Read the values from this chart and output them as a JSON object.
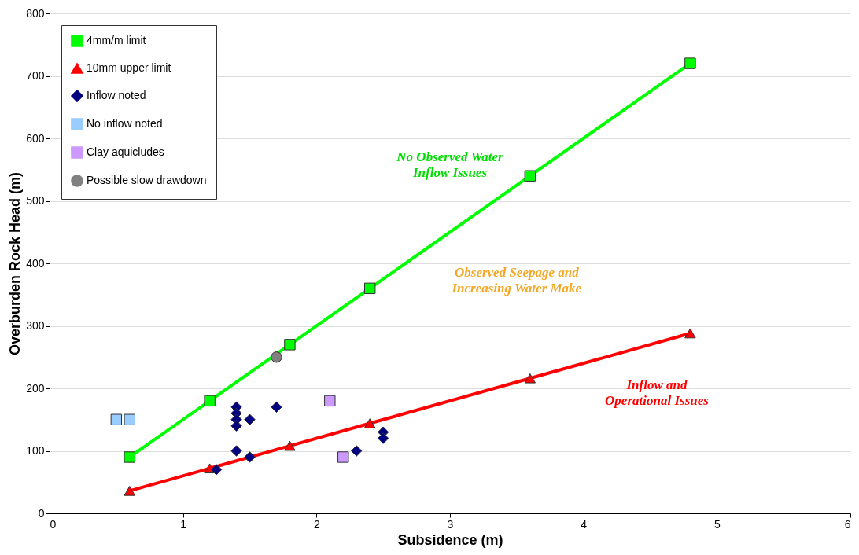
{
  "chart_data": {
    "type": "scatter",
    "xlabel": "Subsidence (m)",
    "ylabel": "Overburden Rock Head (m)",
    "xlim": [
      0,
      6
    ],
    "xticks": [
      0,
      1,
      2,
      3,
      4,
      5,
      6
    ],
    "ylim": [
      0,
      800
    ],
    "yticks": [
      0,
      100,
      200,
      300,
      400,
      500,
      600,
      700,
      800
    ],
    "grid": "y",
    "legend": "top left",
    "annotations": [
      "No Observed Water Inflow Issues",
      "Observed Seepage and Increasing Water Make",
      "Inflow and Operational Issues"
    ],
    "series": [
      {
        "name": "4mm/m limit",
        "type": "line",
        "marker": "square",
        "color": "#00ff00",
        "x": [
          0.6,
          1.2,
          1.8,
          2.4,
          3.6,
          4.8
        ],
        "values": [
          90,
          180,
          270,
          360,
          540,
          720
        ]
      },
      {
        "name": "10mm upper limit",
        "type": "line",
        "marker": "triangle",
        "color": "#ff0000",
        "x": [
          0.6,
          1.2,
          1.8,
          2.4,
          3.6,
          4.8
        ],
        "values": [
          36,
          72,
          108,
          144,
          216,
          288
        ]
      },
      {
        "name": "Inflow noted",
        "type": "scatter",
        "marker": "diamond",
        "color": "#000080",
        "x": [
          1.25,
          1.4,
          1.4,
          1.4,
          1.4,
          1.4,
          1.5,
          1.5,
          1.7,
          2.3,
          2.5,
          2.5
        ],
        "values": [
          70,
          170,
          160,
          150,
          140,
          100,
          150,
          90,
          170,
          100,
          130,
          120
        ]
      },
      {
        "name": "No inflow noted",
        "type": "scatter",
        "marker": "square",
        "color": "#99ccff",
        "x": [
          0.5,
          0.6
        ],
        "values": [
          150,
          150
        ]
      },
      {
        "name": "Clay aquicludes",
        "type": "scatter",
        "marker": "square",
        "color": "#cc99ff",
        "x": [
          2.1,
          2.2
        ],
        "values": [
          180,
          90
        ]
      },
      {
        "name": "Possible slow drawdown",
        "type": "scatter",
        "marker": "circle",
        "color": "#808080",
        "x": [
          1.7
        ],
        "values": [
          250
        ]
      }
    ]
  }
}
